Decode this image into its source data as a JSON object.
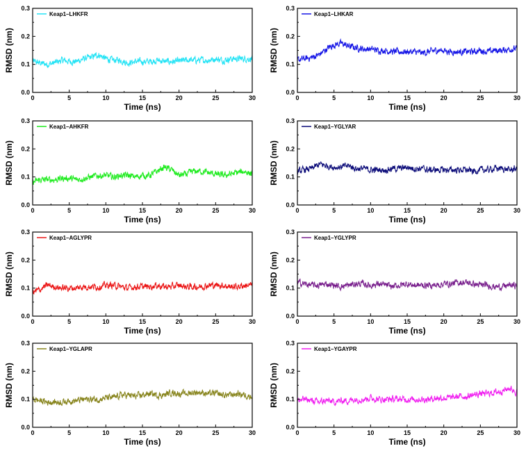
{
  "chart_data": [
    {
      "type": "line",
      "legend": "Keap1–LHKFR",
      "color": "#22E3F5",
      "xlabel": "Time (ns)",
      "ylabel": "RMSD (nm)",
      "xlim": [
        0,
        30
      ],
      "ylim": [
        0.0,
        0.3
      ],
      "xticks": [
        "0",
        "5",
        "10",
        "15",
        "20",
        "25",
        "30"
      ],
      "yticks": [
        "0.0",
        "0.1",
        "0.2",
        "0.3"
      ],
      "x": [
        0,
        1,
        2,
        3,
        4,
        5,
        6,
        7,
        8,
        9,
        10,
        11,
        12,
        13,
        14,
        15,
        16,
        17,
        18,
        19,
        20,
        21,
        22,
        23,
        24,
        25,
        26,
        27,
        28,
        29,
        30
      ],
      "y": [
        0.11,
        0.105,
        0.1,
        0.105,
        0.115,
        0.11,
        0.11,
        0.12,
        0.125,
        0.135,
        0.12,
        0.115,
        0.115,
        0.105,
        0.11,
        0.11,
        0.11,
        0.115,
        0.11,
        0.11,
        0.11,
        0.115,
        0.115,
        0.115,
        0.115,
        0.12,
        0.115,
        0.12,
        0.12,
        0.12,
        0.12
      ]
    },
    {
      "type": "line",
      "legend": "Keap1–LHKAR",
      "color": "#1414E6",
      "xlabel": "Time (ns)",
      "ylabel": "RMSD (nm)",
      "xlim": [
        0,
        30
      ],
      "ylim": [
        0.0,
        0.3
      ],
      "xticks": [
        "0",
        "5",
        "10",
        "15",
        "20",
        "25",
        "30"
      ],
      "yticks": [
        "0.0",
        "0.1",
        "0.2",
        "0.3"
      ],
      "x": [
        0,
        1,
        2,
        3,
        4,
        5,
        6,
        7,
        8,
        9,
        10,
        11,
        12,
        13,
        14,
        15,
        16,
        17,
        18,
        19,
        20,
        21,
        22,
        23,
        24,
        25,
        26,
        27,
        28,
        29,
        30
      ],
      "y": [
        0.115,
        0.12,
        0.125,
        0.135,
        0.155,
        0.17,
        0.175,
        0.165,
        0.16,
        0.155,
        0.155,
        0.15,
        0.15,
        0.145,
        0.145,
        0.145,
        0.145,
        0.14,
        0.145,
        0.15,
        0.15,
        0.145,
        0.145,
        0.145,
        0.145,
        0.15,
        0.145,
        0.15,
        0.15,
        0.155,
        0.155
      ]
    },
    {
      "type": "line",
      "legend": "Keap1–AHKFR",
      "color": "#1EEB1E",
      "xlabel": "Time (ns)",
      "ylabel": "RMSD (nm)",
      "xlim": [
        0,
        30
      ],
      "ylim": [
        0.0,
        0.3
      ],
      "xticks": [
        "0",
        "5",
        "10",
        "15",
        "20",
        "25",
        "30"
      ],
      "yticks": [
        "0.0",
        "0.1",
        "0.2",
        "0.3"
      ],
      "x": [
        0,
        1,
        2,
        3,
        4,
        5,
        6,
        7,
        8,
        9,
        10,
        11,
        12,
        13,
        14,
        15,
        16,
        17,
        18,
        19,
        20,
        21,
        22,
        23,
        24,
        25,
        26,
        27,
        28,
        29,
        30
      ],
      "y": [
        0.08,
        0.09,
        0.09,
        0.09,
        0.095,
        0.095,
        0.09,
        0.095,
        0.1,
        0.105,
        0.105,
        0.1,
        0.105,
        0.105,
        0.1,
        0.105,
        0.105,
        0.12,
        0.135,
        0.125,
        0.105,
        0.11,
        0.12,
        0.12,
        0.115,
        0.11,
        0.105,
        0.11,
        0.115,
        0.12,
        0.11
      ]
    },
    {
      "type": "line",
      "legend": "Keap1–YGLYAR",
      "color": "#0A0A78",
      "xlabel": "Time (ns)",
      "ylabel": "RMSD (nm)",
      "xlim": [
        0,
        30
      ],
      "ylim": [
        0.0,
        0.3
      ],
      "xticks": [
        "0",
        "5",
        "10",
        "15",
        "20",
        "25",
        "30"
      ],
      "yticks": [
        "0.0",
        "0.1",
        "0.2",
        "0.3"
      ],
      "x": [
        0,
        1,
        2,
        3,
        4,
        5,
        6,
        7,
        8,
        9,
        10,
        11,
        12,
        13,
        14,
        15,
        16,
        17,
        18,
        19,
        20,
        21,
        22,
        23,
        24,
        25,
        26,
        27,
        28,
        29,
        30
      ],
      "y": [
        0.12,
        0.125,
        0.13,
        0.145,
        0.14,
        0.135,
        0.135,
        0.14,
        0.13,
        0.13,
        0.125,
        0.125,
        0.125,
        0.13,
        0.13,
        0.135,
        0.13,
        0.13,
        0.125,
        0.125,
        0.125,
        0.125,
        0.125,
        0.125,
        0.12,
        0.125,
        0.125,
        0.13,
        0.13,
        0.125,
        0.13
      ]
    },
    {
      "type": "line",
      "legend": "Keap1–AGLYPR",
      "color": "#EB1414",
      "xlabel": "Time (ns)",
      "ylabel": "RMSD (nm)",
      "xlim": [
        0,
        30
      ],
      "ylim": [
        0.0,
        0.3
      ],
      "xticks": [
        "0",
        "5",
        "10",
        "15",
        "20",
        "25",
        "30"
      ],
      "yticks": [
        "0.0",
        "0.1",
        "0.2",
        "0.3"
      ],
      "x": [
        0,
        1,
        2,
        3,
        4,
        5,
        6,
        7,
        8,
        9,
        10,
        11,
        12,
        13,
        14,
        15,
        16,
        17,
        18,
        19,
        20,
        21,
        22,
        23,
        24,
        25,
        26,
        27,
        28,
        29,
        30
      ],
      "y": [
        0.085,
        0.095,
        0.11,
        0.105,
        0.1,
        0.1,
        0.1,
        0.105,
        0.105,
        0.105,
        0.11,
        0.11,
        0.105,
        0.1,
        0.105,
        0.105,
        0.105,
        0.11,
        0.105,
        0.105,
        0.11,
        0.105,
        0.105,
        0.105,
        0.11,
        0.11,
        0.11,
        0.105,
        0.105,
        0.11,
        0.11
      ]
    },
    {
      "type": "line",
      "legend": "Keap1–YGLYPR",
      "color": "#781E8C",
      "xlabel": "Time (ns)",
      "ylabel": "RMSD (nm)",
      "xlim": [
        0,
        30
      ],
      "ylim": [
        0.0,
        0.3
      ],
      "xticks": [
        "0",
        "5",
        "10",
        "15",
        "20",
        "25",
        "30"
      ],
      "yticks": [
        "0.0",
        "0.1",
        "0.2",
        "0.3"
      ],
      "x": [
        0,
        1,
        2,
        3,
        4,
        5,
        6,
        7,
        8,
        9,
        10,
        11,
        12,
        13,
        14,
        15,
        16,
        17,
        18,
        19,
        20,
        21,
        22,
        23,
        24,
        25,
        26,
        27,
        28,
        29,
        30
      ],
      "y": [
        0.12,
        0.115,
        0.11,
        0.11,
        0.115,
        0.11,
        0.105,
        0.11,
        0.115,
        0.115,
        0.11,
        0.115,
        0.11,
        0.105,
        0.11,
        0.115,
        0.11,
        0.11,
        0.11,
        0.11,
        0.115,
        0.115,
        0.12,
        0.12,
        0.115,
        0.11,
        0.11,
        0.105,
        0.105,
        0.11,
        0.11
      ]
    },
    {
      "type": "line",
      "legend": "Keap1–YGLAPR",
      "color": "#87841C",
      "xlabel": "Time (ns)",
      "ylabel": "RMSD (nm)",
      "xlim": [
        0,
        30
      ],
      "ylim": [
        0.0,
        0.3
      ],
      "xticks": [
        "0",
        "5",
        "10",
        "15",
        "20",
        "25",
        "30"
      ],
      "yticks": [
        "0.0",
        "0.1",
        "0.2",
        "0.3"
      ],
      "x": [
        0,
        1,
        2,
        3,
        4,
        5,
        6,
        7,
        8,
        9,
        10,
        11,
        12,
        13,
        14,
        15,
        16,
        17,
        18,
        19,
        20,
        21,
        22,
        23,
        24,
        25,
        26,
        27,
        28,
        29,
        30
      ],
      "y": [
        0.1,
        0.095,
        0.09,
        0.09,
        0.09,
        0.095,
        0.095,
        0.1,
        0.1,
        0.1,
        0.105,
        0.105,
        0.115,
        0.115,
        0.11,
        0.115,
        0.12,
        0.115,
        0.115,
        0.125,
        0.12,
        0.12,
        0.125,
        0.125,
        0.12,
        0.12,
        0.115,
        0.115,
        0.12,
        0.115,
        0.11
      ]
    },
    {
      "type": "line",
      "legend": "Keap1–YGAYPR",
      "color": "#F01EF0",
      "xlabel": "Time (ns)",
      "ylabel": "RMSD (nm)",
      "xlim": [
        0,
        30
      ],
      "ylim": [
        0.0,
        0.3
      ],
      "xticks": [
        "0",
        "5",
        "10",
        "15",
        "20",
        "25",
        "30"
      ],
      "yticks": [
        "0.0",
        "0.1",
        "0.2",
        "0.3"
      ],
      "x": [
        0,
        1,
        2,
        3,
        4,
        5,
        6,
        7,
        8,
        9,
        10,
        11,
        12,
        13,
        14,
        15,
        16,
        17,
        18,
        19,
        20,
        21,
        22,
        23,
        24,
        25,
        26,
        27,
        28,
        29,
        30
      ],
      "y": [
        0.095,
        0.1,
        0.095,
        0.09,
        0.095,
        0.09,
        0.095,
        0.095,
        0.1,
        0.1,
        0.105,
        0.1,
        0.1,
        0.1,
        0.1,
        0.1,
        0.1,
        0.1,
        0.1,
        0.105,
        0.105,
        0.105,
        0.11,
        0.11,
        0.115,
        0.12,
        0.12,
        0.125,
        0.13,
        0.14,
        0.125
      ]
    }
  ]
}
